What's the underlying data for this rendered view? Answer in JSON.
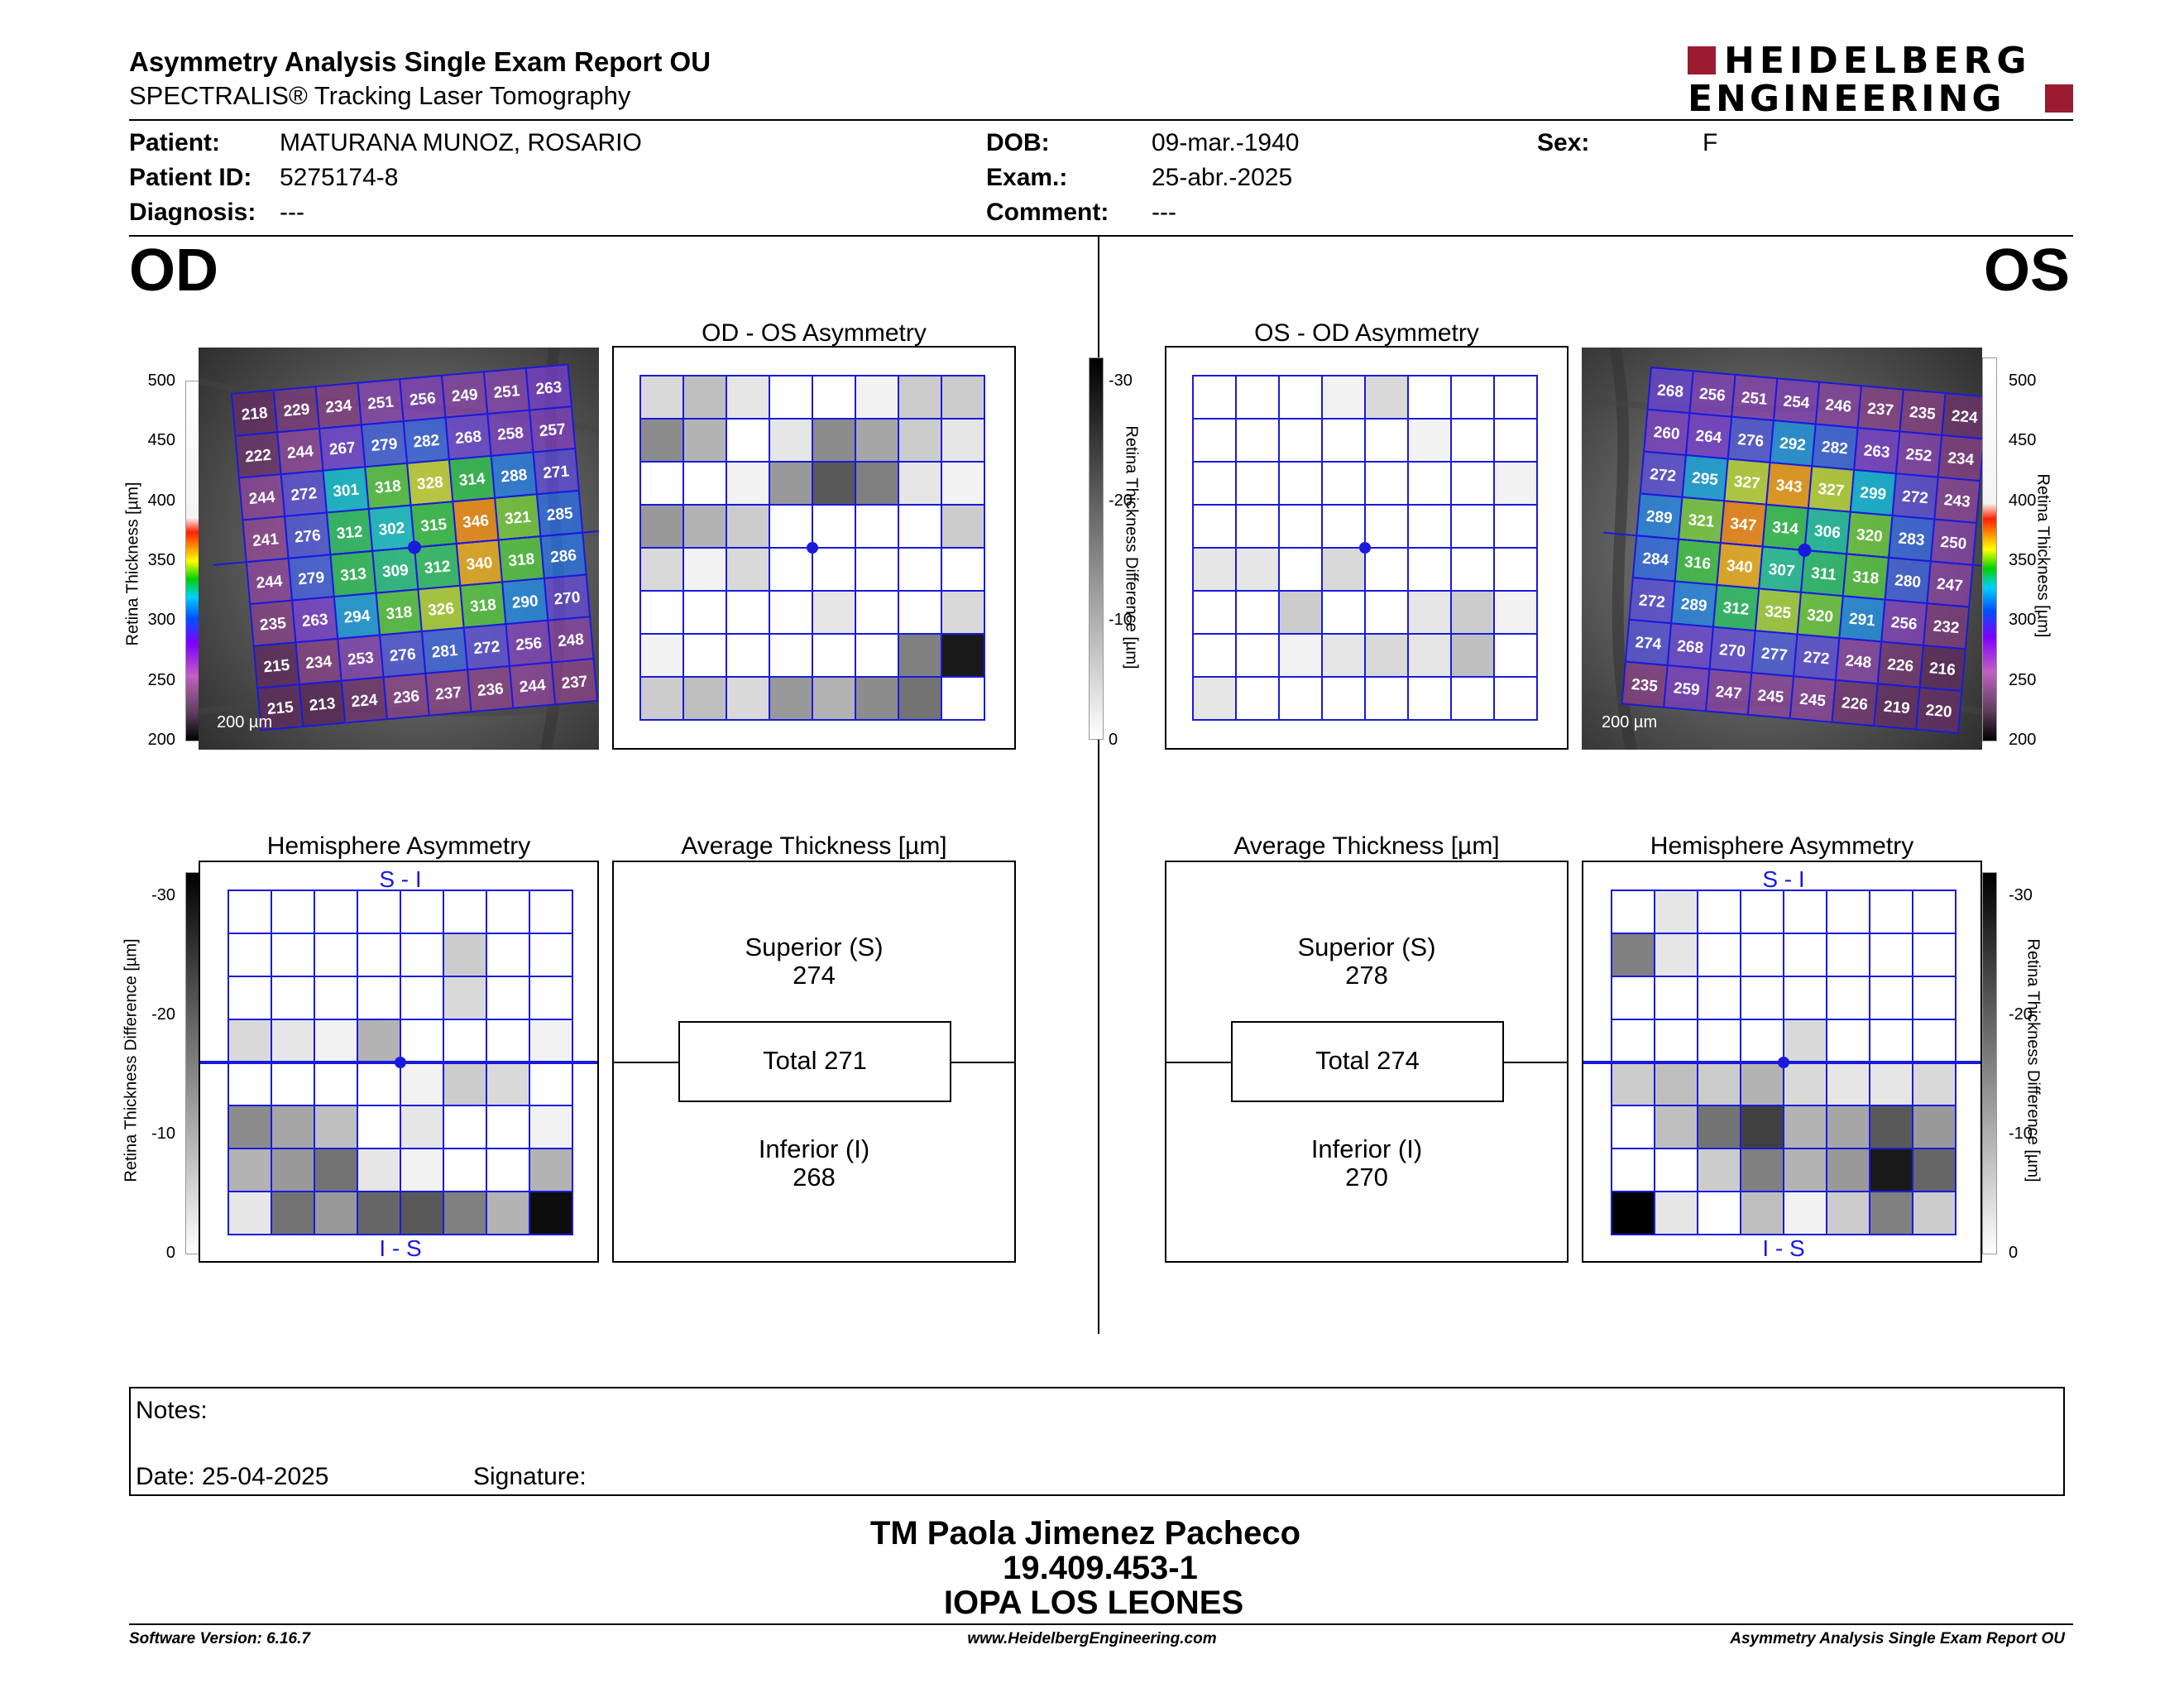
{
  "header": {
    "title": "Asymmetry Analysis Single Exam Report OU",
    "subtitle": "SPECTRALIS® Tracking Laser Tomography",
    "logo_line1": "HEIDELBERG",
    "logo_line2": "ENGINEERING"
  },
  "patient": {
    "patient_label": "Patient:",
    "patient_value": "MATURANA MUNOZ, ROSARIO",
    "id_label": "Patient ID:",
    "id_value": "5275174-8",
    "diag_label": "Diagnosis:",
    "diag_value": "---",
    "dob_label": "DOB:",
    "dob_value": "09-mar.-1940",
    "exam_label": "Exam.:",
    "exam_value": "25-abr.-2025",
    "comment_label": "Comment:",
    "comment_value": "---",
    "sex_label": "Sex:",
    "sex_value": "F"
  },
  "od": {
    "eye_label": "OD",
    "asym_title": "OD - OS Asymmetry",
    "hemi_title": "Hemisphere Asymmetry",
    "avg_title": "Average Thickness [µm]",
    "superior_label": "Superior (S)",
    "superior_value": "274",
    "total_label": "Total 271",
    "inferior_label": "Inferior (I)",
    "inferior_value": "268",
    "scale_bar": "200 µm",
    "thickness_grid": [
      [
        218,
        229,
        234,
        251,
        256,
        249,
        251,
        263
      ],
      [
        222,
        244,
        267,
        279,
        282,
        268,
        258,
        257
      ],
      [
        244,
        272,
        301,
        318,
        328,
        314,
        288,
        271
      ],
      [
        241,
        276,
        312,
        302,
        315,
        346,
        321,
        285
      ],
      [
        244,
        279,
        313,
        309,
        312,
        340,
        318,
        286
      ],
      [
        235,
        263,
        294,
        318,
        326,
        318,
        290,
        270
      ],
      [
        215,
        234,
        253,
        276,
        281,
        272,
        256,
        248
      ],
      [
        215,
        213,
        224,
        236,
        237,
        236,
        244,
        237
      ]
    ],
    "asym_grid": [
      [
        0.15,
        0.25,
        0.1,
        0,
        0,
        0.05,
        0.2,
        0.2
      ],
      [
        0.45,
        0.3,
        0,
        0.1,
        0.45,
        0.35,
        0.2,
        0.1
      ],
      [
        0,
        0,
        0.05,
        0.4,
        0.65,
        0.5,
        0.1,
        0.05
      ],
      [
        0.4,
        0.3,
        0.2,
        0,
        0,
        0,
        0,
        0.2
      ],
      [
        0.15,
        0.05,
        0.15,
        0,
        0,
        0,
        0,
        0
      ],
      [
        0,
        0,
        0,
        0,
        0.1,
        0,
        0,
        0.15
      ],
      [
        0.05,
        0,
        0,
        0,
        0,
        0,
        0.5,
        0.9
      ],
      [
        0.2,
        0.25,
        0.15,
        0.4,
        0.3,
        0.45,
        0.55,
        0
      ]
    ],
    "hemi_grid": [
      [
        0,
        0,
        0,
        0,
        0,
        0,
        0,
        0
      ],
      [
        0,
        0,
        0,
        0,
        0,
        0.2,
        0,
        0
      ],
      [
        0,
        0,
        0,
        0,
        0,
        0.15,
        0,
        0
      ],
      [
        0.15,
        0.1,
        0.05,
        0.3,
        0,
        0,
        0,
        0.05
      ],
      [
        0,
        0,
        0,
        0,
        0.05,
        0.2,
        0.15,
        0
      ],
      [
        0.45,
        0.35,
        0.25,
        0,
        0.1,
        0,
        0,
        0.05
      ],
      [
        0.3,
        0.4,
        0.55,
        0.1,
        0.05,
        0,
        0,
        0.3
      ],
      [
        0.1,
        0.55,
        0.4,
        0.6,
        0.65,
        0.5,
        0.3,
        0.95
      ]
    ],
    "hemi_top": "S - I",
    "hemi_bottom": "I - S"
  },
  "os": {
    "eye_label": "OS",
    "asym_title": "OS - OD Asymmetry",
    "hemi_title": "Hemisphere Asymmetry",
    "avg_title": "Average Thickness [µm]",
    "superior_label": "Superior (S)",
    "superior_value": "278",
    "total_label": "Total 274",
    "inferior_label": "Inferior (I)",
    "inferior_value": "270",
    "scale_bar": "200 µm",
    "thickness_grid": [
      [
        268,
        256,
        251,
        254,
        246,
        237,
        235,
        224
      ],
      [
        260,
        264,
        276,
        292,
        282,
        263,
        252,
        234
      ],
      [
        272,
        295,
        327,
        343,
        327,
        299,
        272,
        243
      ],
      [
        289,
        321,
        347,
        314,
        306,
        320,
        283,
        250
      ],
      [
        284,
        316,
        340,
        307,
        311,
        318,
        280,
        247
      ],
      [
        272,
        289,
        312,
        325,
        320,
        291,
        256,
        232
      ],
      [
        274,
        268,
        270,
        277,
        272,
        248,
        226,
        216
      ],
      [
        235,
        259,
        247,
        245,
        245,
        226,
        219,
        220
      ]
    ],
    "asym_grid": [
      [
        0,
        0,
        0,
        0.05,
        0.15,
        0,
        0,
        0
      ],
      [
        0,
        0,
        0,
        0,
        0,
        0.05,
        0,
        0
      ],
      [
        0,
        0,
        0,
        0,
        0,
        0,
        0,
        0.05
      ],
      [
        0,
        0,
        0,
        0,
        0,
        0,
        0,
        0
      ],
      [
        0.1,
        0.1,
        0,
        0.15,
        0,
        0,
        0,
        0
      ],
      [
        0,
        0,
        0.2,
        0,
        0,
        0.1,
        0.2,
        0.05
      ],
      [
        0,
        0,
        0.05,
        0.1,
        0.15,
        0.1,
        0.25,
        0
      ],
      [
        0.1,
        0,
        0,
        0,
        0,
        0,
        0,
        0
      ]
    ],
    "hemi_grid": [
      [
        0,
        0.1,
        0,
        0,
        0,
        0,
        0,
        0
      ],
      [
        0.5,
        0.1,
        0,
        0,
        0,
        0,
        0,
        0
      ],
      [
        0,
        0,
        0,
        0,
        0,
        0,
        0,
        0
      ],
      [
        0,
        0,
        0,
        0,
        0.15,
        0,
        0,
        0
      ],
      [
        0.2,
        0.25,
        0.2,
        0.3,
        0.15,
        0.1,
        0.1,
        0.15
      ],
      [
        0,
        0.25,
        0.55,
        0.75,
        0.3,
        0.35,
        0.65,
        0.4
      ],
      [
        0,
        0,
        0.2,
        0.5,
        0.3,
        0.4,
        0.9,
        0.6
      ],
      [
        1.0,
        0.1,
        0,
        0.25,
        0.05,
        0.2,
        0.5,
        0.2
      ]
    ],
    "hemi_top": "S - I",
    "hemi_bottom": "I - S"
  },
  "scales": {
    "thickness_ticks": [
      "500",
      "450",
      "400",
      "350",
      "300",
      "250",
      "200"
    ],
    "thickness_label": "Retina Thickness [µm]",
    "diff_ticks": [
      "-30",
      "-20",
      "-10",
      "0"
    ],
    "diff_label": "Retina Thickness Difference [µm]"
  },
  "notes": {
    "notes_label": "Notes:",
    "date_label": "Date: 25-04-2025",
    "signature_label": "Signature:"
  },
  "signature_block": {
    "line1": "TM Paola Jimenez Pacheco",
    "line2": "19.409.453-1",
    "line3": "IOPA LOS LEONES"
  },
  "footer": {
    "software": "Software Version: 6.16.7",
    "website": "www.HeidelbergEngineering.com",
    "report_name": "Asymmetry Analysis Single Exam Report OU"
  },
  "colors": {
    "grid_blue": "#1a1adc",
    "logo_red": "#9b1b30"
  }
}
